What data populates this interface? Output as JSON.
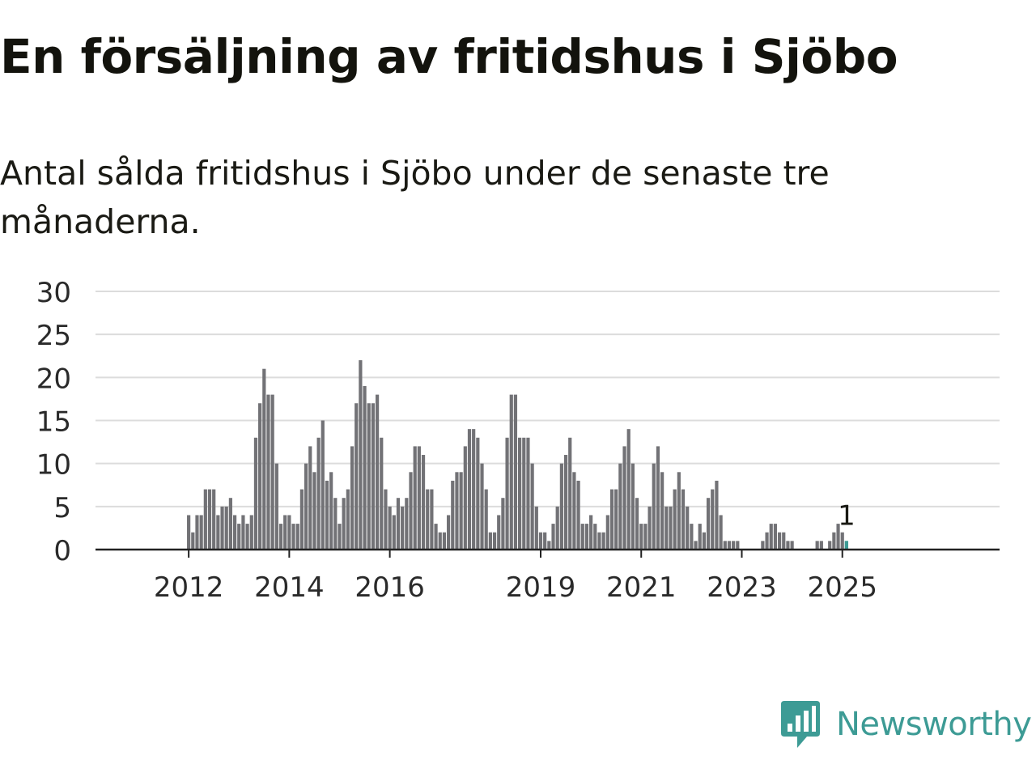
{
  "title": "En försäljning av fritidshus i Sjöbo",
  "subtitle": "Antal sålda fritidshus i Sjöbo under de senaste tre månaderna.",
  "brand": "Newsworthy",
  "colors": {
    "bar": "#727276",
    "highlight": "#3d9b95",
    "grid": "#dcdcdc",
    "axis": "#222222",
    "brand": "#3d9b95"
  },
  "chart_data": {
    "type": "bar",
    "title": "En försäljning av fritidshus i Sjöbo",
    "xlabel": "",
    "ylabel": "",
    "ylim": [
      0,
      30
    ],
    "yticks": [
      "0",
      "5",
      "10",
      "15",
      "20",
      "25",
      "30"
    ],
    "x_start": "2011-01",
    "frequency": "monthly",
    "xticks": [
      {
        "label": "2012",
        "month": "2012-01"
      },
      {
        "label": "2014",
        "month": "2014-01"
      },
      {
        "label": "2016",
        "month": "2016-01"
      },
      {
        "label": "2019",
        "month": "2019-01"
      },
      {
        "label": "2021",
        "month": "2021-01"
      },
      {
        "label": "2023",
        "month": "2023-01"
      },
      {
        "label": "2025",
        "month": "2025-01"
      }
    ],
    "values": [
      0,
      0,
      0,
      0,
      0,
      0,
      0,
      0,
      0,
      0,
      0,
      0,
      4,
      2,
      4,
      4,
      7,
      7,
      7,
      4,
      5,
      5,
      6,
      4,
      3,
      4,
      3,
      4,
      13,
      17,
      21,
      18,
      18,
      10,
      3,
      4,
      4,
      3,
      3,
      7,
      10,
      12,
      9,
      13,
      15,
      8,
      9,
      6,
      3,
      6,
      7,
      12,
      17,
      22,
      19,
      17,
      17,
      18,
      13,
      7,
      5,
      4,
      6,
      5,
      6,
      9,
      12,
      12,
      11,
      7,
      7,
      3,
      2,
      2,
      4,
      8,
      9,
      9,
      12,
      14,
      14,
      13,
      10,
      7,
      2,
      2,
      4,
      6,
      13,
      18,
      18,
      13,
      13,
      13,
      10,
      5,
      2,
      2,
      1,
      3,
      5,
      10,
      11,
      13,
      9,
      8,
      3,
      3,
      4,
      3,
      2,
      2,
      4,
      7,
      7,
      10,
      12,
      14,
      10,
      6,
      3,
      3,
      5,
      10,
      12,
      9,
      5,
      5,
      7,
      9,
      7,
      5,
      3,
      1,
      3,
      2,
      6,
      7,
      8,
      4,
      1,
      1,
      1,
      1,
      0,
      0,
      0,
      0,
      0,
      1,
      2,
      3,
      3,
      2,
      2,
      1,
      1,
      0,
      0,
      0,
      0,
      0,
      1,
      1,
      0,
      1,
      2,
      3,
      2,
      1
    ],
    "highlight": {
      "month": "2025-02",
      "value": 1,
      "label": "1"
    }
  }
}
